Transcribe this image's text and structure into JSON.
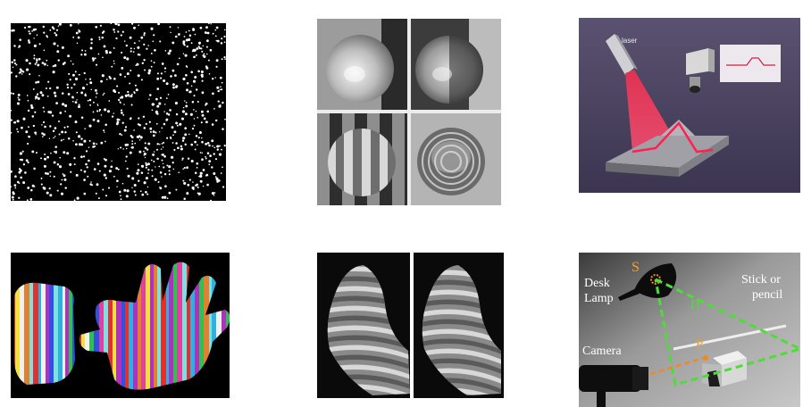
{
  "figures": [
    {
      "label": "laser"
    },
    {
      "labels": {
        "source": "S",
        "plane": "Π",
        "point": "P",
        "lamp_line1": "Desk",
        "lamp_line2": "Lamp",
        "stick_line1": "Stick or",
        "stick_line2": "pencil",
        "camera": "Camera"
      }
    }
  ]
}
